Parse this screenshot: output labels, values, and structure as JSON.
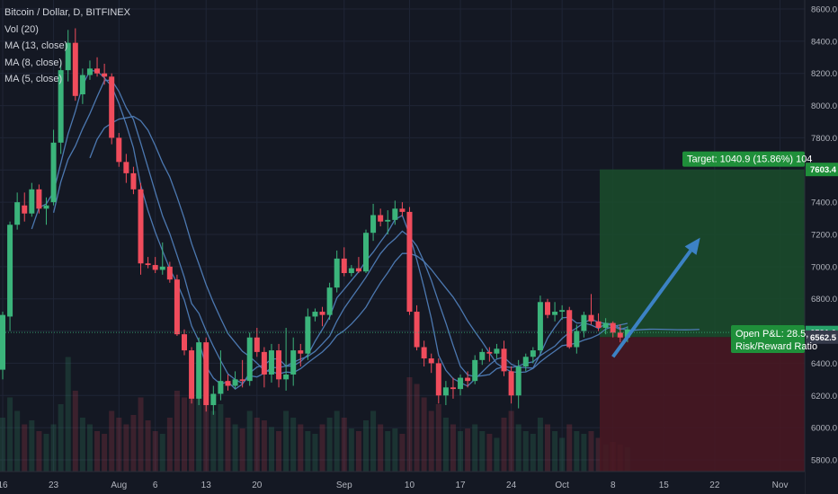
{
  "chart_data": {
    "type": "candlestick",
    "title": "Bitcoin / Dollar, D, BITFINEX",
    "indicators": [
      "Vol (20)",
      "MA (13, close)",
      "MA (8, close)",
      "MA (5, close)"
    ],
    "y_ticks": [
      5800,
      6000,
      6200,
      6400,
      6600,
      6800,
      7000,
      7200,
      7400,
      7600,
      7800,
      8000,
      8200,
      8400,
      8600
    ],
    "y_tick_labels": [
      "5800.0",
      "6000.0",
      "6200.0",
      "6400.0",
      "6600.0",
      "6800.0",
      "7000.0",
      "7200.0",
      "7400.0",
      "7600.0",
      "7800.0",
      "8000.0",
      "8200.0",
      "8400.0",
      "8600.0"
    ],
    "ylim": [
      5700,
      8650
    ],
    "x_ticks": [
      "16",
      "23",
      "Aug",
      "6",
      "13",
      "20",
      "Sep",
      "10",
      "17",
      "24",
      "Oct",
      "8",
      "15",
      "22",
      "Nov"
    ],
    "x_tick_days": [
      0,
      7,
      16,
      21,
      28,
      35,
      47,
      56,
      63,
      70,
      77,
      84,
      91,
      98,
      107
    ],
    "candles": [
      {
        "o": 6360,
        "h": 6720,
        "l": 6300,
        "c": 6700
      },
      {
        "o": 6690,
        "h": 7280,
        "l": 6600,
        "c": 7260
      },
      {
        "o": 7260,
        "h": 7460,
        "l": 7230,
        "c": 7400
      },
      {
        "o": 7380,
        "h": 7460,
        "l": 7280,
        "c": 7330
      },
      {
        "o": 7330,
        "h": 7520,
        "l": 7310,
        "c": 7480
      },
      {
        "o": 7480,
        "h": 7510,
        "l": 7330,
        "c": 7360
      },
      {
        "o": 7360,
        "h": 7430,
        "l": 7260,
        "c": 7380
      },
      {
        "o": 7400,
        "h": 7850,
        "l": 7380,
        "c": 7770
      },
      {
        "o": 7770,
        "h": 8280,
        "l": 7700,
        "c": 8220
      },
      {
        "o": 8220,
        "h": 8470,
        "l": 8150,
        "c": 8390
      },
      {
        "o": 8390,
        "h": 8480,
        "l": 8030,
        "c": 8060
      },
      {
        "o": 8070,
        "h": 8230,
        "l": 8010,
        "c": 8190
      },
      {
        "o": 8190,
        "h": 8280,
        "l": 8160,
        "c": 8230
      },
      {
        "o": 8230,
        "h": 8300,
        "l": 8180,
        "c": 8200
      },
      {
        "o": 8200,
        "h": 8260,
        "l": 8130,
        "c": 8180
      },
      {
        "o": 8180,
        "h": 8200,
        "l": 7760,
        "c": 7800
      },
      {
        "o": 7800,
        "h": 7830,
        "l": 7620,
        "c": 7650
      },
      {
        "o": 7650,
        "h": 7700,
        "l": 7520,
        "c": 7580
      },
      {
        "o": 7580,
        "h": 7620,
        "l": 7450,
        "c": 7480
      },
      {
        "o": 7480,
        "h": 7520,
        "l": 6950,
        "c": 7020
      },
      {
        "o": 7020,
        "h": 7060,
        "l": 6990,
        "c": 7010
      },
      {
        "o": 7010,
        "h": 7060,
        "l": 6960,
        "c": 6980
      },
      {
        "o": 6980,
        "h": 7150,
        "l": 6950,
        "c": 7000
      },
      {
        "o": 7000,
        "h": 7030,
        "l": 6900,
        "c": 6920
      },
      {
        "o": 6920,
        "h": 6950,
        "l": 6570,
        "c": 6580
      },
      {
        "o": 6580,
        "h": 6610,
        "l": 6450,
        "c": 6480
      },
      {
        "o": 6480,
        "h": 6500,
        "l": 6150,
        "c": 6180
      },
      {
        "o": 6180,
        "h": 6560,
        "l": 6140,
        "c": 6530
      },
      {
        "o": 6530,
        "h": 6560,
        "l": 6100,
        "c": 6140
      },
      {
        "o": 6140,
        "h": 6260,
        "l": 6080,
        "c": 6210
      },
      {
        "o": 6210,
        "h": 6480,
        "l": 6170,
        "c": 6290
      },
      {
        "o": 6290,
        "h": 6330,
        "l": 6230,
        "c": 6260
      },
      {
        "o": 6260,
        "h": 6350,
        "l": 6240,
        "c": 6300
      },
      {
        "o": 6300,
        "h": 6420,
        "l": 6250,
        "c": 6290
      },
      {
        "o": 6290,
        "h": 6590,
        "l": 6260,
        "c": 6560
      },
      {
        "o": 6560,
        "h": 6620,
        "l": 6440,
        "c": 6470
      },
      {
        "o": 6470,
        "h": 6500,
        "l": 6250,
        "c": 6330
      },
      {
        "o": 6330,
        "h": 6520,
        "l": 6280,
        "c": 6480
      },
      {
        "o": 6480,
        "h": 6520,
        "l": 6250,
        "c": 6300
      },
      {
        "o": 6300,
        "h": 6620,
        "l": 6230,
        "c": 6330
      },
      {
        "o": 6330,
        "h": 6560,
        "l": 6260,
        "c": 6480
      },
      {
        "o": 6480,
        "h": 6520,
        "l": 6380,
        "c": 6460
      },
      {
        "o": 6460,
        "h": 6740,
        "l": 6420,
        "c": 6690
      },
      {
        "o": 6690,
        "h": 6740,
        "l": 6660,
        "c": 6720
      },
      {
        "o": 6720,
        "h": 6750,
        "l": 6630,
        "c": 6700
      },
      {
        "o": 6700,
        "h": 6900,
        "l": 6670,
        "c": 6870
      },
      {
        "o": 6870,
        "h": 7100,
        "l": 6840,
        "c": 7050
      },
      {
        "o": 7050,
        "h": 7120,
        "l": 6940,
        "c": 6960
      },
      {
        "o": 6960,
        "h": 7010,
        "l": 6940,
        "c": 6990
      },
      {
        "o": 6990,
        "h": 7060,
        "l": 6960,
        "c": 6970
      },
      {
        "o": 6970,
        "h": 7230,
        "l": 6960,
        "c": 7210
      },
      {
        "o": 7210,
        "h": 7390,
        "l": 7160,
        "c": 7320
      },
      {
        "o": 7320,
        "h": 7360,
        "l": 7250,
        "c": 7280
      },
      {
        "o": 7280,
        "h": 7350,
        "l": 7200,
        "c": 7290
      },
      {
        "o": 7290,
        "h": 7410,
        "l": 7260,
        "c": 7360
      },
      {
        "o": 7360,
        "h": 7400,
        "l": 7310,
        "c": 7340
      },
      {
        "o": 7340,
        "h": 7370,
        "l": 6700,
        "c": 6720
      },
      {
        "o": 6720,
        "h": 6760,
        "l": 6480,
        "c": 6500
      },
      {
        "o": 6500,
        "h": 6540,
        "l": 6380,
        "c": 6430
      },
      {
        "o": 6430,
        "h": 6460,
        "l": 6340,
        "c": 6400
      },
      {
        "o": 6400,
        "h": 6430,
        "l": 6150,
        "c": 6200
      },
      {
        "o": 6200,
        "h": 6290,
        "l": 6140,
        "c": 6250
      },
      {
        "o": 6250,
        "h": 6310,
        "l": 6180,
        "c": 6240
      },
      {
        "o": 6240,
        "h": 6330,
        "l": 6200,
        "c": 6310
      },
      {
        "o": 6310,
        "h": 6350,
        "l": 6250,
        "c": 6290
      },
      {
        "o": 6290,
        "h": 6450,
        "l": 6270,
        "c": 6420
      },
      {
        "o": 6420,
        "h": 6490,
        "l": 6390,
        "c": 6470
      },
      {
        "o": 6470,
        "h": 6500,
        "l": 6410,
        "c": 6460
      },
      {
        "o": 6460,
        "h": 6520,
        "l": 6430,
        "c": 6490
      },
      {
        "o": 6490,
        "h": 6540,
        "l": 6320,
        "c": 6350
      },
      {
        "o": 6350,
        "h": 6380,
        "l": 6150,
        "c": 6200
      },
      {
        "o": 6200,
        "h": 6420,
        "l": 6120,
        "c": 6380
      },
      {
        "o": 6380,
        "h": 6460,
        "l": 6350,
        "c": 6440
      },
      {
        "o": 6440,
        "h": 6500,
        "l": 6400,
        "c": 6480
      },
      {
        "o": 6480,
        "h": 6820,
        "l": 6460,
        "c": 6780
      },
      {
        "o": 6780,
        "h": 6800,
        "l": 6680,
        "c": 6700
      },
      {
        "o": 6700,
        "h": 6780,
        "l": 6660,
        "c": 6720
      },
      {
        "o": 6720,
        "h": 6760,
        "l": 6670,
        "c": 6730
      },
      {
        "o": 6730,
        "h": 6750,
        "l": 6490,
        "c": 6500
      },
      {
        "o": 6500,
        "h": 6640,
        "l": 6460,
        "c": 6600
      },
      {
        "o": 6600,
        "h": 6720,
        "l": 6560,
        "c": 6700
      },
      {
        "o": 6700,
        "h": 6830,
        "l": 6640,
        "c": 6660
      },
      {
        "o": 6660,
        "h": 6710,
        "l": 6600,
        "c": 6620
      },
      {
        "o": 6620,
        "h": 6680,
        "l": 6580,
        "c": 6650
      },
      {
        "o": 6650,
        "h": 6660,
        "l": 6560,
        "c": 6590
      },
      {
        "o": 6590,
        "h": 6640,
        "l": 6530,
        "c": 6560
      },
      {
        "o": 6560,
        "h": 6630,
        "l": 6530,
        "c": 6610
      }
    ],
    "volume": [
      0.4,
      0.55,
      0.45,
      0.35,
      0.38,
      0.3,
      0.28,
      0.35,
      0.5,
      0.85,
      0.6,
      0.4,
      0.35,
      0.3,
      0.28,
      0.45,
      0.4,
      0.35,
      0.42,
      0.55,
      0.38,
      0.3,
      0.28,
      0.4,
      0.6,
      0.55,
      0.7,
      0.6,
      0.65,
      0.45,
      0.5,
      0.4,
      0.35,
      0.32,
      0.45,
      0.4,
      0.38,
      0.33,
      0.3,
      0.45,
      0.4,
      0.35,
      0.3,
      0.28,
      0.35,
      0.4,
      0.45,
      0.4,
      0.32,
      0.3,
      0.38,
      0.45,
      0.35,
      0.3,
      0.32,
      0.28,
      0.7,
      0.65,
      0.55,
      0.45,
      0.5,
      0.4,
      0.35,
      0.3,
      0.32,
      0.35,
      0.3,
      0.28,
      0.25,
      0.4,
      0.45,
      0.35,
      0.3,
      0.28,
      0.4,
      0.35,
      0.3,
      0.25,
      0.35,
      0.3,
      0.28,
      0.3,
      0.25,
      0.2,
      0.22,
      0.2,
      0.18
    ],
    "last_price": "6591.0",
    "position": {
      "type": "long",
      "entry": 6562.5,
      "target": 7603.4,
      "entry_label": "6562.5",
      "target_label": "7603.4",
      "target_text": "Target: 1040.9 (15.86%) 104",
      "open_pnl_text": "Open P&L: 28.5,",
      "risk_reward_text": "Risk/Reward Ratio"
    },
    "projection_arrow": {
      "from": {
        "day": 84,
        "price": 6440
      },
      "to": {
        "day": 96,
        "price": 7180
      }
    },
    "colors": {
      "background": "#141823",
      "grid": "#1f2536",
      "up": "#3bb47b",
      "down": "#f04c5c",
      "ma": "#4f7db8",
      "target_zone": "#1a4e2b",
      "stop_zone": "#4a1722",
      "arrow": "#3c82c4",
      "axis_text": "#b2b5be",
      "target_label": "#1f8f3a"
    }
  }
}
